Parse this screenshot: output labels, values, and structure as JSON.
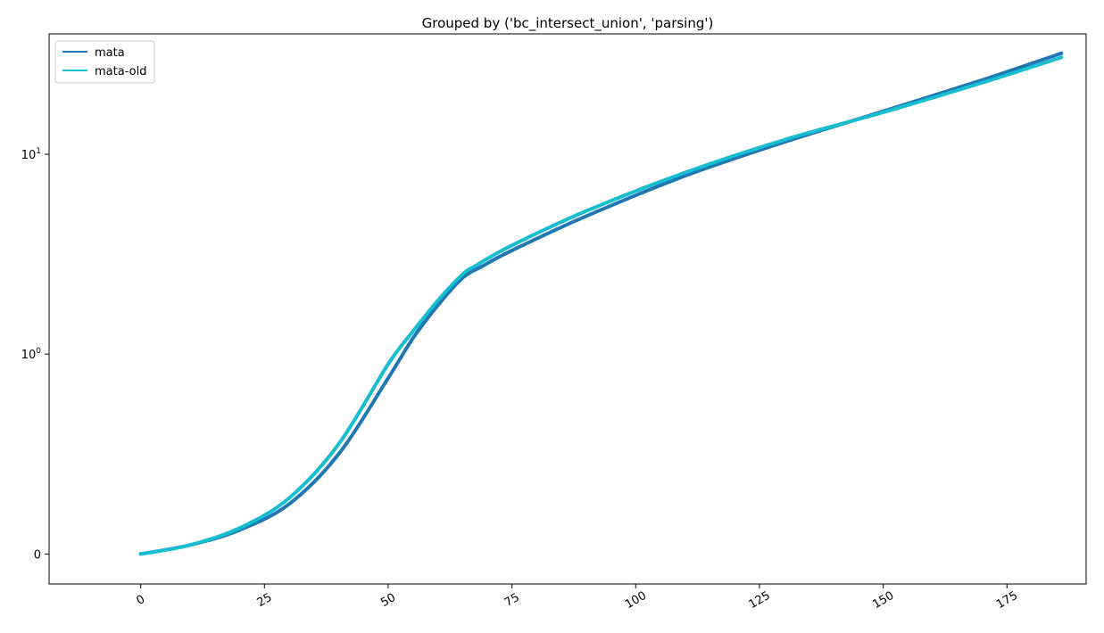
{
  "chart_data": {
    "type": "line",
    "title": "Grouped by ('bc_intersect_union', 'parsing')",
    "xlabel": "",
    "ylabel": "",
    "xlim": [
      -18.5,
      191.0
    ],
    "ylim": [
      -0.15,
      40
    ],
    "yscale": "symlog",
    "grid": false,
    "legend_position": "top-left",
    "x_ticks": [
      0,
      25,
      50,
      75,
      100,
      125,
      150,
      175
    ],
    "x_tick_labels": [
      "0",
      "25",
      "50",
      "75",
      "100",
      "125",
      "150",
      "175"
    ],
    "x_tick_rotation": -30,
    "y_ticks": [
      {
        "value": 0,
        "base": "0",
        "exp": ""
      },
      {
        "value": 1,
        "base": "10",
        "exp": "0"
      },
      {
        "value": 10,
        "base": "10",
        "exp": "1"
      }
    ],
    "series": [
      {
        "name": "mata",
        "color": "#1f77b4",
        "x": [
          0,
          10,
          20,
          30,
          40,
          50,
          55,
          60,
          65,
          69,
          75,
          90,
          110,
          130,
          150,
          170,
          186
        ],
        "y": [
          0.0,
          0.045,
          0.12,
          0.25,
          0.5,
          0.88,
          1.2,
          1.75,
          2.4,
          2.75,
          3.3,
          4.9,
          7.8,
          11.5,
          16.4,
          23.5,
          32.0
        ]
      },
      {
        "name": "mata-old",
        "color": "#17becf",
        "x": [
          0,
          10,
          20,
          30,
          40,
          50,
          55,
          60,
          65,
          68,
          75,
          90,
          110,
          130,
          150,
          170,
          186
        ],
        "y": [
          0.0,
          0.045,
          0.13,
          0.28,
          0.55,
          0.95,
          1.3,
          1.85,
          2.5,
          2.8,
          3.5,
          5.2,
          8.1,
          11.8,
          16.2,
          22.8,
          30.5
        ]
      }
    ]
  }
}
